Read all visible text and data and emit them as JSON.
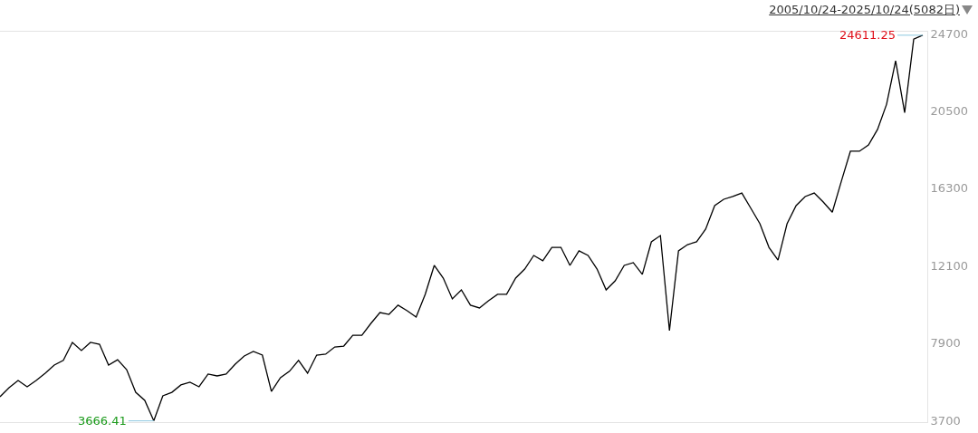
{
  "chart_data": {
    "type": "line",
    "title": "2005/10/24-2025/10/24(5082日)",
    "categories": [
      null,
      null,
      null,
      null,
      null,
      null,
      null,
      null,
      null,
      null,
      null,
      null,
      null,
      null,
      null,
      null,
      null,
      null,
      null,
      null,
      null,
      null,
      null,
      null,
      null,
      null,
      null,
      null,
      null,
      null,
      null,
      null,
      null,
      null,
      null,
      null,
      null,
      null,
      null,
      null,
      null,
      null,
      null,
      null,
      null,
      null,
      null,
      null,
      null,
      null,
      null,
      null,
      null,
      null,
      null,
      null,
      null,
      null,
      null,
      null,
      null,
      null,
      null,
      null,
      null,
      null,
      null,
      null,
      null,
      null,
      null,
      null,
      null,
      null,
      null,
      null,
      null,
      null,
      null,
      null,
      null,
      null,
      null,
      null,
      null,
      null,
      null,
      null,
      null,
      null,
      null,
      null,
      null,
      null,
      null,
      null,
      null,
      null,
      null,
      null,
      null,
      null,
      null
    ],
    "series": [
      {
        "color": "#000000",
        "values": [
          4980,
          5470,
          5860,
          5520,
          5860,
          6260,
          6700,
          6950,
          7930,
          7490,
          7930,
          7830,
          6700,
          6990,
          6450,
          5220,
          4780,
          3670,
          5030,
          5220,
          5620,
          5770,
          5520,
          6210,
          6110,
          6210,
          6750,
          7190,
          7440,
          7240,
          5270,
          6010,
          6360,
          6950,
          6260,
          7240,
          7290,
          7680,
          7730,
          8320,
          8320,
          8960,
          9550,
          9450,
          9950,
          9650,
          9310,
          10540,
          12110,
          11420,
          10290,
          10780,
          9950,
          9800,
          10190,
          10540,
          10540,
          11420,
          11910,
          12650,
          12360,
          13090,
          13090,
          12110,
          12900,
          12650,
          11910,
          10780,
          11270,
          12110,
          12260,
          11620,
          13390,
          13730,
          8570,
          12900,
          13240,
          13390,
          14080,
          15360,
          15700,
          15850,
          16040,
          15210,
          14370,
          13090,
          12400,
          14370,
          15360,
          15850,
          16040,
          15550,
          15000,
          16680,
          18310,
          18310,
          18650,
          19490,
          20860,
          23220,
          20400,
          24400,
          24610
        ]
      }
    ],
    "ylim": [
      3600,
      24800
    ],
    "yticks": [
      3700,
      7900,
      12100,
      16300,
      20500,
      24700
    ],
    "tick_labels": "y",
    "grid": false,
    "marker": "none",
    "line_style": "solid",
    "annotations": [
      "24611.25",
      "3666.41"
    ]
  }
}
